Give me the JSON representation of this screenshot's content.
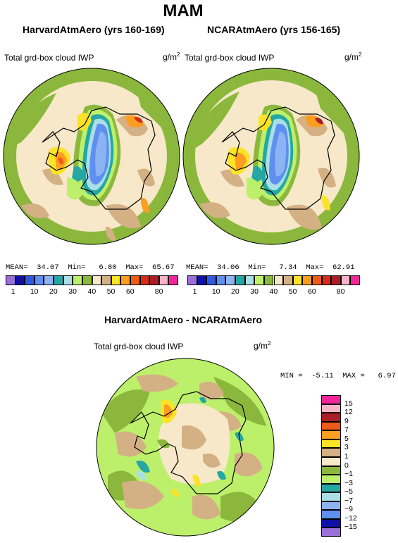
{
  "season_title": "MAM",
  "palette": {
    "purple": "#9b6fd9",
    "navy": "#1010a8",
    "blue": "#2e59e0",
    "mblue": "#5f8ff0",
    "lblue": "#8db4f2",
    "teal": "#25a7a4",
    "cyan": "#a9dfe5",
    "green": "#8bb83c",
    "lgreen": "#bdf06a",
    "tan": "#d4b085",
    "cream": "#f6e8c8",
    "yellow": "#fde325",
    "orange": "#fd9d22",
    "dorange": "#f05a18",
    "red": "#d92b1a",
    "dred": "#a81f28",
    "pink": "#f8b4c6",
    "magenta": "#f1259a"
  },
  "panels": [
    {
      "title": "HarvardAtmAero (yrs 160-169)",
      "variable": "Total grd-box cloud IWP",
      "units": "g/m",
      "units_exp": "2",
      "mean_label": "MEAN=",
      "mean": "34.07",
      "min_label": "Min=",
      "min": "6.80",
      "max_label": "Max=",
      "max": "65.67"
    },
    {
      "title": "NCARAtmAero (yrs 156-165)",
      "variable": "Total grd-box cloud IWP",
      "units": "g/m",
      "units_exp": "2",
      "mean_label": "MEAN=",
      "mean": "34.06",
      "min_label": "Min=",
      "min": "7.34",
      "max_label": "Max=",
      "max": "62.91"
    }
  ],
  "top_colorbar_ticks": [
    "1",
    "10",
    "20",
    "30",
    "40",
    "50",
    "60",
    "80"
  ],
  "difference": {
    "title": "HarvardAtmAero - NCARAtmAero",
    "variable": "Total grd-box cloud IWP",
    "units": "g/m",
    "units_exp": "2",
    "min_label": "MIN =",
    "min": "-5.11",
    "max_label": "MAX =",
    "max": "6.97",
    "colorbar_ticks": [
      "15",
      "12",
      "9",
      "7",
      "5",
      "3",
      "1",
      "0",
      "−1",
      "−3",
      "−5",
      "−7",
      "−9",
      "−12",
      "−15"
    ]
  }
}
